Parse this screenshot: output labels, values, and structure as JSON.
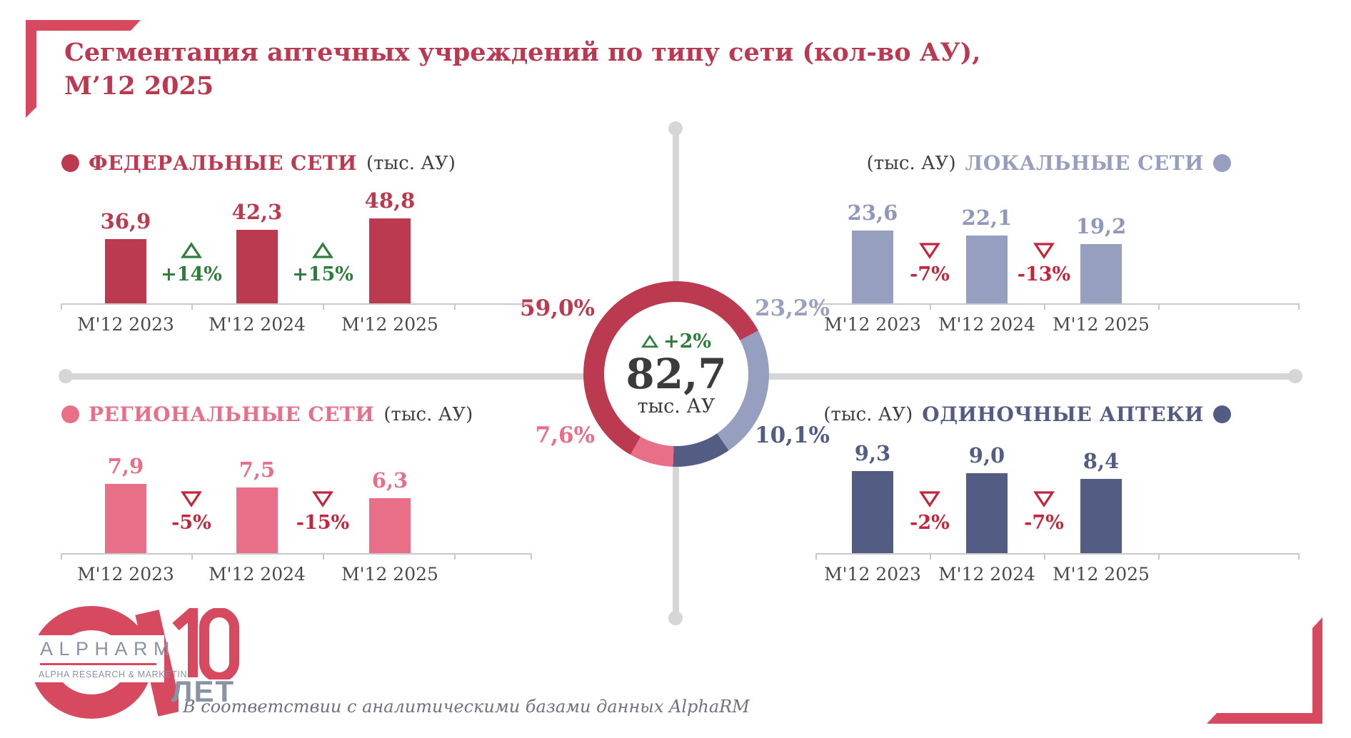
{
  "page": {
    "title_line1": "Сегментация аптечных учреждений по типу сети (кол-во АУ),",
    "title_line2": "М’12 2025",
    "footer_note": "В соответствии с аналитическими базами данных AlphaRM"
  },
  "logo": {
    "brand": "ALPHARM",
    "subtitle": "ALPHA RESEARCH & MARKETING",
    "anniversary_number": "10",
    "anniversary_word": "ЛЕТ"
  },
  "colors": {
    "title_red": "#BC3750",
    "federal": "#BC3A50",
    "local": "#979FC0",
    "regional": "#E96E88",
    "single": "#535C82",
    "up_green": "#2E7D3B",
    "down_red": "#C2253C",
    "divider_gray": "#D6D6D6",
    "bracket_red": "#D7495E"
  },
  "chart_data": [
    {
      "type": "bar",
      "id": "federal",
      "title": "ФЕДЕРАЛЬНЫЕ СЕТИ",
      "unit": "(тыс. АУ)",
      "categories": [
        "М'12 2023",
        "М'12 2024",
        "М'12 2025"
      ],
      "values": [
        36.9,
        42.3,
        48.8
      ],
      "value_labels": [
        "36,9",
        "42,3",
        "48,8"
      ],
      "changes": [
        {
          "direction": "up",
          "label": "+14%"
        },
        {
          "direction": "up",
          "label": "+15%"
        }
      ],
      "color": "#BC3A50",
      "share_of_total": "59,0%"
    },
    {
      "type": "bar",
      "id": "local",
      "title": "ЛОКАЛЬНЫЕ СЕТИ",
      "unit": "(тыс. АУ)",
      "categories": [
        "М'12 2023",
        "М'12 2024",
        "М'12 2025"
      ],
      "values": [
        23.6,
        22.1,
        19.2
      ],
      "value_labels": [
        "23,6",
        "22,1",
        "19,2"
      ],
      "changes": [
        {
          "direction": "down",
          "label": "-7%"
        },
        {
          "direction": "down",
          "label": "-13%"
        }
      ],
      "color": "#979FC0",
      "share_of_total": "23,2%"
    },
    {
      "type": "bar",
      "id": "regional",
      "title": "РЕГИОНАЛЬНЫЕ СЕТИ",
      "unit": "(тыс. АУ)",
      "categories": [
        "М'12 2023",
        "М'12 2024",
        "М'12 2025"
      ],
      "values": [
        7.9,
        7.5,
        6.3
      ],
      "value_labels": [
        "7,9",
        "7,5",
        "6,3"
      ],
      "changes": [
        {
          "direction": "down",
          "label": "-5%"
        },
        {
          "direction": "down",
          "label": "-15%"
        }
      ],
      "color": "#E96E88",
      "share_of_total": "7,6%"
    },
    {
      "type": "bar",
      "id": "single",
      "title": "ОДИНОЧНЫЕ АПТЕКИ",
      "unit": "(тыс. АУ)",
      "categories": [
        "М'12 2023",
        "М'12 2024",
        "М'12 2025"
      ],
      "values": [
        9.3,
        9.0,
        8.4
      ],
      "value_labels": [
        "9,3",
        "9,0",
        "8,4"
      ],
      "changes": [
        {
          "direction": "down",
          "label": "-2%"
        },
        {
          "direction": "down",
          "label": "-7%"
        }
      ],
      "color": "#535C82",
      "share_of_total": "10,1%"
    }
  ],
  "donut": {
    "type": "pie",
    "total_label": "82,7",
    "total_unit": "тыс. АУ",
    "total_change": {
      "direction": "up",
      "label": "+2%"
    },
    "start_angle_deg": 209.64,
    "segments": [
      {
        "name": "ФЕДЕРАЛЬНЫЕ СЕТИ",
        "share": 59.0,
        "label": "59,0%",
        "color": "#BC3A50"
      },
      {
        "name": "ЛОКАЛЬНЫЕ СЕТИ",
        "share": 23.2,
        "label": "23,2%",
        "color": "#979FC0"
      },
      {
        "name": "ОДИНОЧНЫЕ АПТЕКИ",
        "share": 10.1,
        "label": "10,1%",
        "color": "#535C82"
      },
      {
        "name": "РЕГИОНАЛЬНЫЕ СЕТИ",
        "share": 7.6,
        "label": "7,6%",
        "color": "#E96E88"
      }
    ]
  }
}
